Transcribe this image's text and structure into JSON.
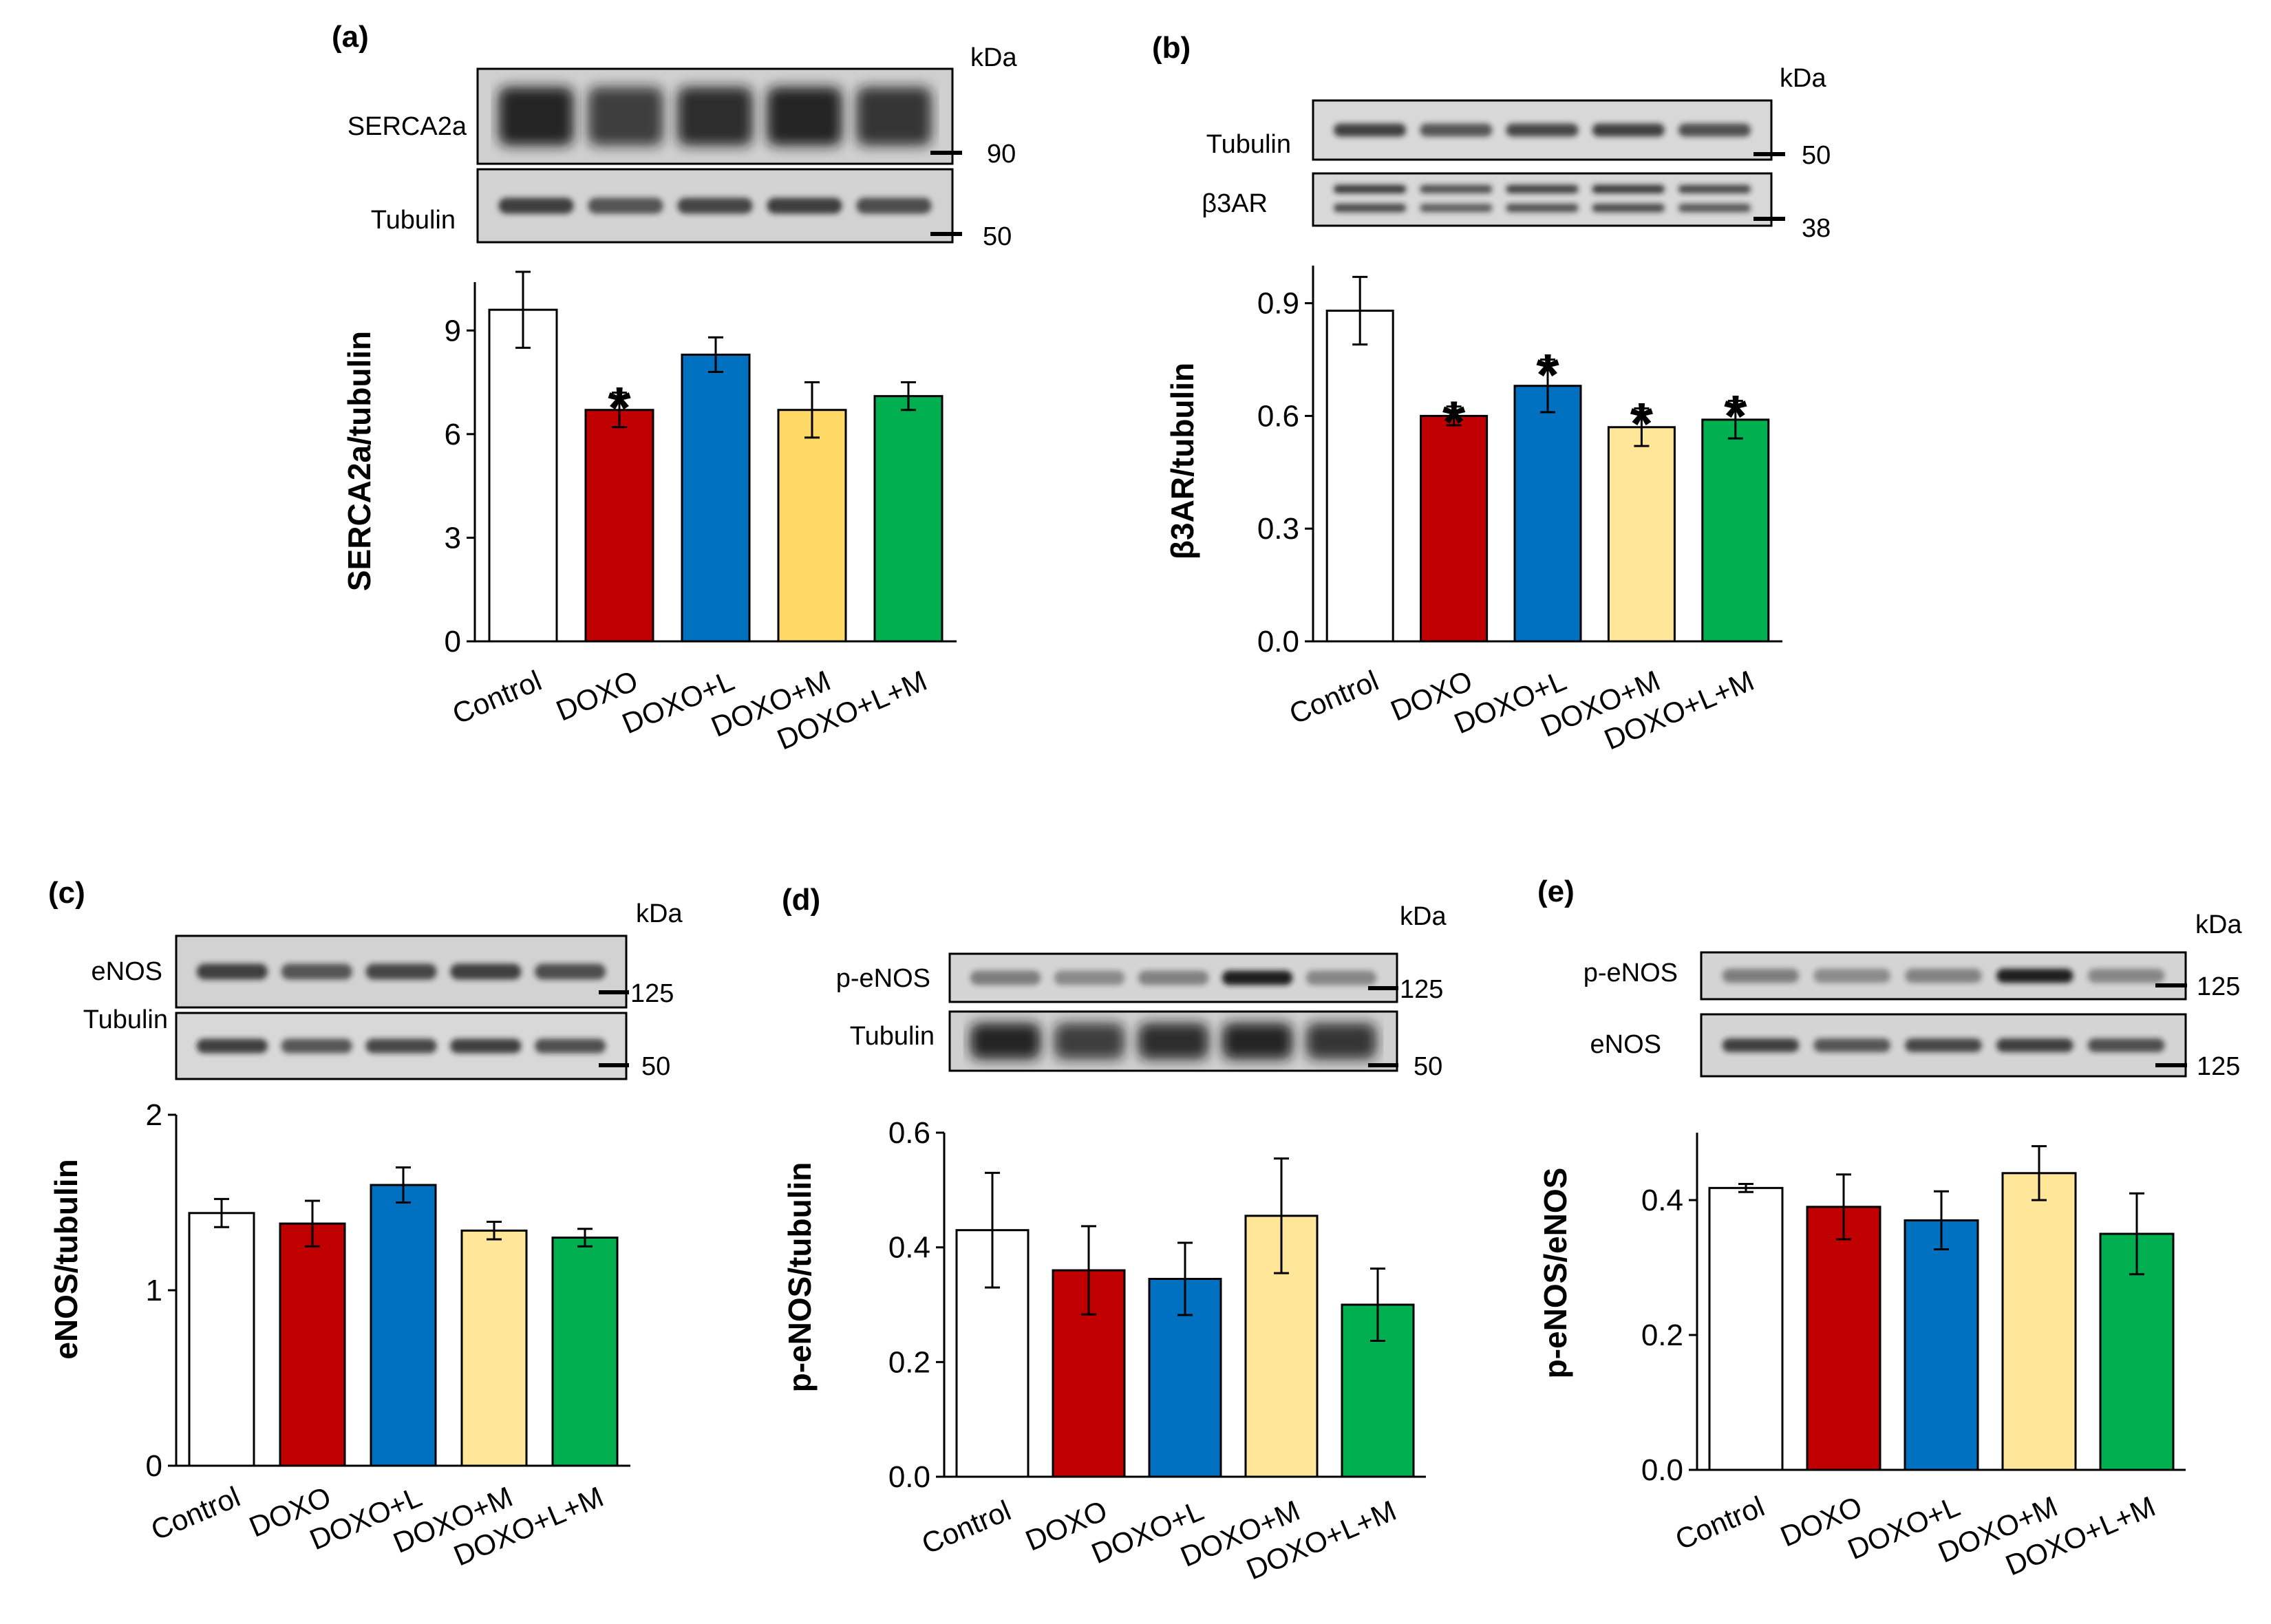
{
  "panels": [
    {
      "label": "(a)",
      "kda": "kDa",
      "blots": [
        {
          "label": "SERCA2a",
          "marker": "90",
          "style": "heavy"
        },
        {
          "label": "Tubulin",
          "marker": "50",
          "style": "light"
        }
      ],
      "chart_data": {
        "type": "bar",
        "ylabel": "SERCA2a/tubulin",
        "categories": [
          "Control",
          "DOXO",
          "DOXO+L",
          "DOXO+M",
          "DOXO+L+M"
        ],
        "values": [
          9.6,
          6.7,
          8.3,
          6.7,
          7.1
        ],
        "errors": [
          1.1,
          0.5,
          0.5,
          0.8,
          0.4
        ],
        "significant": [
          false,
          true,
          false,
          false,
          false
        ],
        "yticks": [
          "0",
          "3",
          "6",
          "9"
        ],
        "ylim": [
          0,
          10.4
        ],
        "colors": [
          "#ffffff",
          "#c00000",
          "#0070c0",
          "#ffd966",
          "#00b050"
        ]
      }
    },
    {
      "label": "(b)",
      "kda": "kDa",
      "blots": [
        {
          "label": "Tubulin",
          "marker": "50",
          "style": "light"
        },
        {
          "label": "β3AR",
          "marker": "38",
          "style": "double"
        }
      ],
      "chart_data": {
        "type": "bar",
        "ylabel": "β3AR/tubulin",
        "categories": [
          "Control",
          "DOXO",
          "DOXO+L",
          "DOXO+M",
          "DOXO+L+M"
        ],
        "values": [
          0.88,
          0.6,
          0.68,
          0.57,
          0.59
        ],
        "errors": [
          0.09,
          0.025,
          0.07,
          0.05,
          0.05
        ],
        "significant": [
          false,
          true,
          true,
          true,
          true
        ],
        "yticks": [
          "0.0",
          "0.3",
          "0.6",
          "0.9"
        ],
        "ylim": [
          0,
          1.0
        ],
        "colors": [
          "#ffffff",
          "#c00000",
          "#0070c0",
          "#ffe699",
          "#00b050"
        ]
      }
    },
    {
      "label": "(c)",
      "kda": "kDa",
      "blots": [
        {
          "label": "eNOS",
          "marker": "125",
          "style": "light"
        },
        {
          "label": "Tubulin",
          "marker": "50",
          "style": "light"
        }
      ],
      "chart_data": {
        "type": "bar",
        "ylabel": "eNOS/tubulin",
        "categories": [
          "Control",
          "DOXO",
          "DOXO+L",
          "DOXO+M",
          "DOXO+L+M"
        ],
        "values": [
          1.44,
          1.38,
          1.6,
          1.34,
          1.3
        ],
        "errors": [
          0.08,
          0.13,
          0.1,
          0.05,
          0.05
        ],
        "significant": [
          false,
          false,
          false,
          false,
          false
        ],
        "yticks": [
          "0",
          "1",
          "2"
        ],
        "ylim": [
          0,
          2
        ],
        "colors": [
          "#ffffff",
          "#c00000",
          "#0070c0",
          "#ffe699",
          "#00b050"
        ]
      }
    },
    {
      "label": "(d)",
      "kda": "kDa",
      "blots": [
        {
          "label": "p-eNOS",
          "marker": "125",
          "style": "faint"
        },
        {
          "label": "Tubulin",
          "marker": "50",
          "style": "heavy"
        }
      ],
      "chart_data": {
        "type": "bar",
        "ylabel": "p-eNOS/tubulin",
        "categories": [
          "Control",
          "DOXO",
          "DOXO+L",
          "DOXO+M",
          "DOXO+L+M"
        ],
        "values": [
          0.43,
          0.36,
          0.345,
          0.455,
          0.3
        ],
        "errors": [
          0.1,
          0.077,
          0.063,
          0.1,
          0.063
        ],
        "significant": [
          false,
          false,
          false,
          false,
          false
        ],
        "yticks": [
          "0.0",
          "0.2",
          "0.4",
          "0.6"
        ],
        "ylim": [
          0,
          0.6
        ],
        "colors": [
          "#ffffff",
          "#c00000",
          "#0070c0",
          "#ffe699",
          "#00b050"
        ]
      }
    },
    {
      "label": "(e)",
      "kda": "kDa",
      "blots": [
        {
          "label": "p-eNOS",
          "marker": "125",
          "style": "faint"
        },
        {
          "label": "eNOS",
          "marker": "125",
          "style": "light"
        }
      ],
      "chart_data": {
        "type": "bar",
        "ylabel": "p-eNOS/eNOS",
        "categories": [
          "Control",
          "DOXO",
          "DOXO+L",
          "DOXO+M",
          "DOXO+L+M"
        ],
        "values": [
          0.418,
          0.39,
          0.37,
          0.44,
          0.35
        ],
        "errors": [
          0.006,
          0.048,
          0.043,
          0.04,
          0.06
        ],
        "significant": [
          false,
          false,
          false,
          false,
          false
        ],
        "yticks": [
          "0.0",
          "0.2",
          "0.4"
        ],
        "ylim": [
          0,
          0.5
        ],
        "colors": [
          "#ffffff",
          "#c00000",
          "#0070c0",
          "#ffe699",
          "#00b050"
        ]
      }
    }
  ]
}
